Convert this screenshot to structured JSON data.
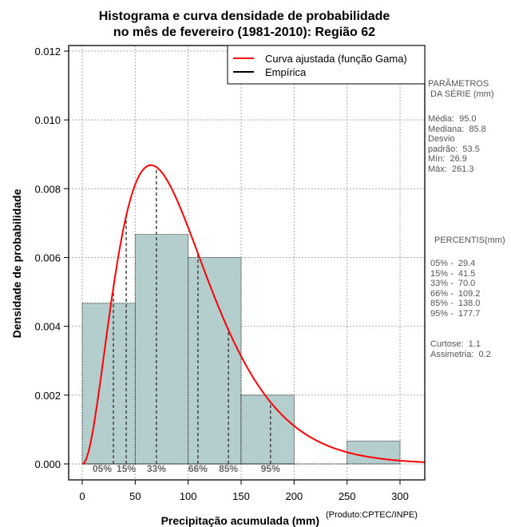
{
  "chart_data": {
    "type": "bar",
    "title_line1": "Histograma e curva densidade de probabilidade",
    "title_line2": "no mês de fevereiro (1981-2010): Região 62",
    "xlabel": "Precipitação acumulada (mm)",
    "ylabel": "Densidade de probabilidade",
    "credit": "(Produto:CPTEC/INPE)",
    "xlim": [
      -12,
      323
    ],
    "ylim": [
      -0.0005,
      0.0123
    ],
    "xticks": [
      0,
      50,
      100,
      150,
      200,
      250,
      300
    ],
    "yticks": [
      "0.000",
      "0.002",
      "0.004",
      "0.006",
      "0.008",
      "0.010",
      "0.012"
    ],
    "grid": true,
    "bins": [
      {
        "from": 0,
        "to": 50,
        "density": 0.00467
      },
      {
        "from": 50,
        "to": 100,
        "density": 0.00667
      },
      {
        "from": 100,
        "to": 150,
        "density": 0.006
      },
      {
        "from": 150,
        "to": 200,
        "density": 0.002
      },
      {
        "from": 200,
        "to": 250,
        "density": 0.0
      },
      {
        "from": 250,
        "to": 300,
        "density": 0.000667
      }
    ],
    "gamma_fit": {
      "mean": 95.0,
      "sd": 53.5
    },
    "percentile_lines": [
      {
        "label": "05%",
        "value": 29.4
      },
      {
        "label": "15%",
        "value": 41.5
      },
      {
        "label": "33%",
        "value": 70.0
      },
      {
        "label": "66%",
        "value": 109.2
      },
      {
        "label": "85%",
        "value": 138.0
      },
      {
        "label": "95%",
        "value": 177.7
      }
    ],
    "legend": {
      "placement": "top-right",
      "entries": [
        {
          "label": "Curva ajustada (função Gama)",
          "color": "#ff0000"
        },
        {
          "label": "Empírica",
          "color": "#000000"
        }
      ]
    },
    "bar_color": "#b4cdcd"
  },
  "side_panel": {
    "params_title": "PARÂMETROS\n DA SÉRIE (mm)",
    "params": "Média:  95.0\nMediana:  85.8\nDesvio\npadrão:  53.5\nMín:  26.9\nMáx:  261.3",
    "percentis_title": "PERCENTIS(mm)",
    "percentis": "05% -  29.4\n15% -  41.5\n33% -  70.0\n66% -  109.2\n85% -  138.0\n95% -  177.7",
    "stats": "Curtose:  1.1\nAssimetria:  0.2"
  }
}
